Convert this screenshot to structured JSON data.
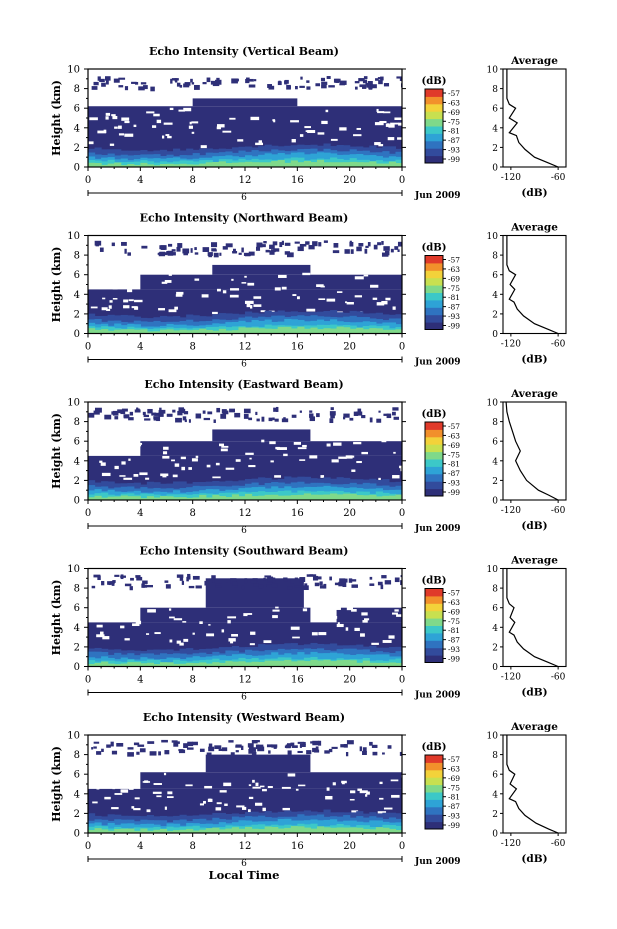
{
  "figure": {
    "xlabel": "Local Time",
    "time_ticks": [
      "0",
      "4",
      "8",
      "12",
      "16",
      "20",
      "0"
    ],
    "height_ticks": [
      "0",
      "2",
      "4",
      "6",
      "8",
      "10"
    ],
    "height_label": "Height (km)",
    "date_label": "6",
    "month_label": "Jun 2009",
    "cb_unit": "(dB)",
    "cb_ticks": [
      "-57",
      "-63",
      "-69",
      "-75",
      "-81",
      "-87",
      "-93",
      "-99"
    ],
    "avg_title": "Average",
    "avg_xticks": [
      "-120",
      "-60"
    ],
    "avg_xlabel": "(dB)",
    "colors": [
      "#2e2f78",
      "#324b9c",
      "#2f73c0",
      "#2ea3d6",
      "#3cc8c8",
      "#7fd98a",
      "#c8e050",
      "#f3d23a",
      "#f2902b",
      "#e03a2a"
    ]
  },
  "panels": [
    {
      "title": "Echo Intensity (Vertical Beam)",
      "layers": [
        {
          "t": [
            0,
            24
          ],
          "h": [
            0,
            6.2
          ],
          "fill": "dark"
        },
        {
          "t": [
            8,
            16
          ],
          "h": [
            6.2,
            7.0
          ],
          "fill": "dark"
        },
        {
          "t": [
            0,
            24
          ],
          "h": [
            8.2,
            9.3
          ],
          "fill": "sparse"
        }
      ],
      "avg_profile": [
        [
          0.0,
          -60
        ],
        [
          0.4,
          -72
        ],
        [
          1.0,
          -90
        ],
        [
          1.8,
          -102
        ],
        [
          2.5,
          -110
        ],
        [
          3.2,
          -113
        ],
        [
          3.5,
          -122
        ],
        [
          4.5,
          -112
        ],
        [
          5.0,
          -122
        ],
        [
          6.0,
          -114
        ],
        [
          6.4,
          -122
        ],
        [
          7.0,
          -125
        ],
        [
          10.0,
          -125
        ]
      ]
    },
    {
      "title": "Echo Intensity (Northward Beam)",
      "layers": [
        {
          "t": [
            0,
            24
          ],
          "h": [
            0,
            4.5
          ],
          "fill": "dark"
        },
        {
          "t": [
            4,
            24
          ],
          "h": [
            4.5,
            6.0
          ],
          "fill": "dark"
        },
        {
          "t": [
            9.5,
            17
          ],
          "h": [
            6.0,
            7.0
          ],
          "fill": "dark"
        },
        {
          "t": [
            0,
            24
          ],
          "h": [
            8.2,
            9.5
          ],
          "fill": "sparse"
        }
      ],
      "avg_profile": [
        [
          0.0,
          -60
        ],
        [
          0.4,
          -72
        ],
        [
          1.0,
          -90
        ],
        [
          1.8,
          -104
        ],
        [
          2.5,
          -112
        ],
        [
          3.2,
          -116
        ],
        [
          3.5,
          -122
        ],
        [
          4.5,
          -115
        ],
        [
          5.0,
          -121
        ],
        [
          6.0,
          -114
        ],
        [
          6.4,
          -122
        ],
        [
          7.0,
          -125
        ],
        [
          10.0,
          -125
        ]
      ]
    },
    {
      "title": "Echo Intensity (Eastward Beam)",
      "layers": [
        {
          "t": [
            0,
            24
          ],
          "h": [
            0,
            4.5
          ],
          "fill": "dark"
        },
        {
          "t": [
            4,
            24
          ],
          "h": [
            4.5,
            6.0
          ],
          "fill": "dark"
        },
        {
          "t": [
            9.5,
            17
          ],
          "h": [
            6.0,
            7.2
          ],
          "fill": "dark"
        },
        {
          "t": [
            0,
            24
          ],
          "h": [
            8.2,
            9.5
          ],
          "fill": "sparse"
        }
      ],
      "avg_profile": [
        [
          0.0,
          -60
        ],
        [
          0.5,
          -72
        ],
        [
          1.0,
          -85
        ],
        [
          2.0,
          -100
        ],
        [
          3.0,
          -108
        ],
        [
          4.0,
          -114
        ],
        [
          5.0,
          -108
        ],
        [
          6.0,
          -114
        ],
        [
          7.0,
          -118
        ],
        [
          8.0,
          -122
        ],
        [
          9.0,
          -125
        ],
        [
          10.0,
          -126
        ]
      ]
    },
    {
      "title": "Echo Intensity (Southward Beam)",
      "layers": [
        {
          "t": [
            0,
            24
          ],
          "h": [
            0,
            4.5
          ],
          "fill": "dark"
        },
        {
          "t": [
            4,
            17
          ],
          "h": [
            4.5,
            6.0
          ],
          "fill": "dark"
        },
        {
          "t": [
            19,
            24
          ],
          "h": [
            4.5,
            6.0
          ],
          "fill": "dark"
        },
        {
          "t": [
            9,
            16.5
          ],
          "h": [
            6.0,
            9.0
          ],
          "fill": "dark"
        },
        {
          "t": [
            0,
            24
          ],
          "h": [
            8.2,
            9.5
          ],
          "fill": "sparse"
        }
      ],
      "avg_profile": [
        [
          0.0,
          -60
        ],
        [
          0.4,
          -72
        ],
        [
          1.0,
          -90
        ],
        [
          1.8,
          -104
        ],
        [
          2.5,
          -112
        ],
        [
          3.2,
          -116
        ],
        [
          3.5,
          -122
        ],
        [
          4.5,
          -115
        ],
        [
          5.0,
          -121
        ],
        [
          6.0,
          -116
        ],
        [
          6.4,
          -122
        ],
        [
          7.0,
          -125
        ],
        [
          10.0,
          -125
        ]
      ]
    },
    {
      "title": "Echo Intensity (Westward Beam)",
      "layers": [
        {
          "t": [
            0,
            24
          ],
          "h": [
            0,
            4.5
          ],
          "fill": "dark"
        },
        {
          "t": [
            4,
            24
          ],
          "h": [
            4.5,
            6.2
          ],
          "fill": "dark"
        },
        {
          "t": [
            9,
            17
          ],
          "h": [
            6.2,
            8.0
          ],
          "fill": "dark"
        },
        {
          "t": [
            0,
            24
          ],
          "h": [
            8.2,
            9.5
          ],
          "fill": "sparse"
        }
      ],
      "avg_profile": [
        [
          0.0,
          -60
        ],
        [
          0.4,
          -72
        ],
        [
          1.0,
          -88
        ],
        [
          1.8,
          -102
        ],
        [
          2.5,
          -110
        ],
        [
          3.2,
          -114
        ],
        [
          3.5,
          -122
        ],
        [
          4.5,
          -113
        ],
        [
          5.0,
          -121
        ],
        [
          6.0,
          -115
        ],
        [
          6.4,
          -122
        ],
        [
          7.0,
          -125
        ],
        [
          10.0,
          -125
        ]
      ]
    }
  ],
  "chart_data": [
    {
      "type": "heatmap",
      "title": "Echo Intensity (Vertical Beam)",
      "xlabel": "",
      "ylabel": "Height (km)",
      "xlim": [
        0,
        24
      ],
      "ylim": [
        0,
        10
      ],
      "color_range": [
        -99,
        -57
      ]
    },
    {
      "type": "heatmap",
      "title": "Echo Intensity (Northward Beam)",
      "xlabel": "",
      "ylabel": "Height (km)",
      "xlim": [
        0,
        24
      ],
      "ylim": [
        0,
        10
      ],
      "color_range": [
        -99,
        -57
      ]
    },
    {
      "type": "heatmap",
      "title": "Echo Intensity (Eastward Beam)",
      "xlabel": "",
      "ylabel": "Height (km)",
      "xlim": [
        0,
        24
      ],
      "ylim": [
        0,
        10
      ],
      "color_range": [
        -99,
        -57
      ]
    },
    {
      "type": "heatmap",
      "title": "Echo Intensity (Southward Beam)",
      "xlabel": "",
      "ylabel": "Height (km)",
      "xlim": [
        0,
        24
      ],
      "ylim": [
        0,
        10
      ],
      "color_range": [
        -99,
        -57
      ]
    },
    {
      "type": "heatmap",
      "title": "Echo Intensity (Westward Beam)",
      "xlabel": "Local Time",
      "ylabel": "Height (km)",
      "xlim": [
        0,
        24
      ],
      "ylim": [
        0,
        10
      ],
      "color_range": [
        -99,
        -57
      ]
    }
  ]
}
